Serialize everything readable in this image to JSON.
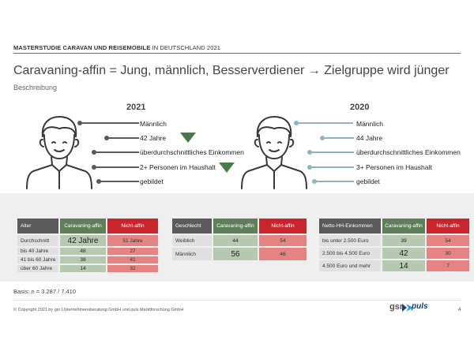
{
  "header": {
    "study_label_strong": "MASTERSTUDIE CARAVAN UND REISEMOBILE",
    "study_label_rest": " IN DEUTSCHLAND 2021"
  },
  "title": "Caravaning-affin = Jung, männlich, Besserverdiener → Zielgruppe wird jünger",
  "subtitle": "Beschreibung",
  "profile_2021": {
    "year": "2021",
    "line_color": "#5a5a5a",
    "attributes": [
      "Männlich",
      "42 Jahre",
      "überdurchschnittliches Einkommen",
      "2+ Personen im Haushalt",
      "gebildet"
    ],
    "trend_color": "#4b7a4a"
  },
  "profile_2020": {
    "year": "2020",
    "line_color": "#8fb3c2",
    "attributes": [
      "Männlich",
      "44 Jahre",
      "überdurchschnittliches Einkommen",
      "3+ Personen im Haushalt",
      "gebildet"
    ]
  },
  "table_age": {
    "headers": [
      "Alter",
      "Caravaning-affin",
      "Nicht-affin"
    ],
    "rows": [
      [
        "Durchschnitt",
        "42 Jahre",
        "51 Jahre"
      ],
      [
        "bis 40 Jahre",
        "48",
        "27"
      ],
      [
        "41 bis 60 Jahre",
        "38",
        "41"
      ],
      [
        "über 60 Jahre",
        "14",
        "32"
      ]
    ]
  },
  "table_gender": {
    "headers": [
      "Geschlecht",
      "Caravaning-affin",
      "Nicht-affin"
    ],
    "rows": [
      [
        "Weiblich",
        "44",
        "54"
      ],
      [
        "Männlich",
        "56",
        "46"
      ]
    ]
  },
  "table_income": {
    "headers": [
      "Netto-HH-Einkommen",
      "Caravaning-affin",
      "Nicht-affin"
    ],
    "rows": [
      [
        "bis unter 2.500 Euro",
        "39",
        "54"
      ],
      [
        "2.500 bis 4.500 Euro",
        "42",
        "30"
      ],
      [
        "4.500 Euro und mehr",
        "14",
        "7"
      ]
    ]
  },
  "basis": "Basis: n = 3.287 / 7.410",
  "footer": {
    "copyright": "© Copyright 2021 by gsr Unternehmensberatung GmbH und puls Marktforschung GmbH",
    "logo_gsr": "gsr",
    "logo_puls": "puls",
    "page": "4"
  },
  "colors": {
    "green_header": "#5d8058",
    "red_header": "#c8252d",
    "green_value": "#b6c8b0",
    "red_value": "#e58383"
  }
}
